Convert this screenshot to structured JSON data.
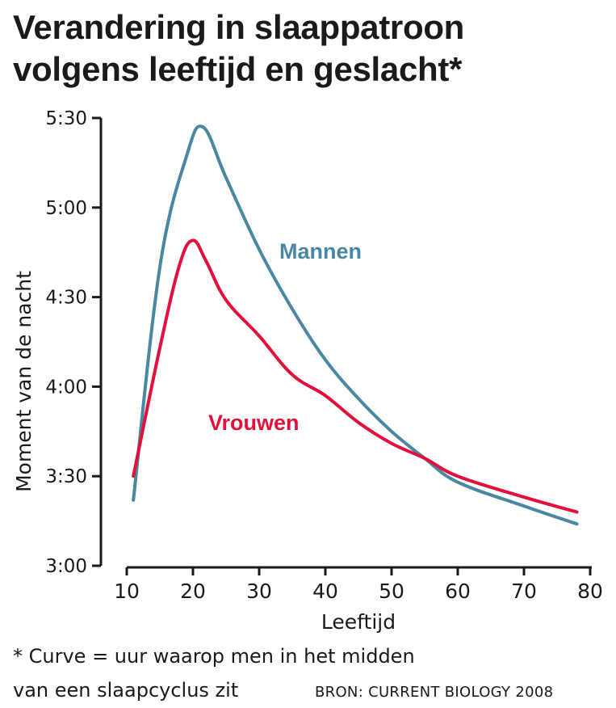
{
  "title_lines": [
    "Verandering in slaappatroon",
    "volgens leeftijd en geslacht*"
  ],
  "footnote_lines": [
    "* Curve = uur waarop men in het midden",
    "van een slaapcyclus zit"
  ],
  "source": "BRON: CURRENT BIOLOGY 2008",
  "chart_data": {
    "type": "line",
    "title": "Verandering in slaappatroon volgens leeftijd en geslacht*",
    "xlabel": "Leeftijd",
    "ylabel": "Moment van de nacht",
    "xlim": [
      10,
      80
    ],
    "ylim": [
      "3:00",
      "5:30"
    ],
    "x_ticks": [
      "10",
      "20",
      "30",
      "40",
      "50",
      "60",
      "70",
      "80"
    ],
    "y_ticks": [
      "3:00",
      "3:30",
      "4:00",
      "4:30",
      "5:00",
      "5:30"
    ],
    "grid": false,
    "series": [
      {
        "name": "Mannen",
        "color": "#4a87a3",
        "points": [
          [
            11,
            "3:22"
          ],
          [
            15,
            "4:40"
          ],
          [
            19,
            "5:17"
          ],
          [
            21.5,
            "5:27"
          ],
          [
            25,
            "5:10"
          ],
          [
            30,
            "4:46"
          ],
          [
            35,
            "4:26"
          ],
          [
            40,
            "4:09"
          ],
          [
            45,
            "3:56"
          ],
          [
            50,
            "3:45"
          ],
          [
            55,
            "3:36"
          ],
          [
            60,
            "3:28"
          ],
          [
            70,
            "3:20"
          ],
          [
            78,
            "3:14"
          ]
        ]
      },
      {
        "name": "Vrouwen",
        "color": "#e3103c",
        "points": [
          [
            11,
            "3:30"
          ],
          [
            15,
            "4:13"
          ],
          [
            18,
            "4:41"
          ],
          [
            20,
            "4:49"
          ],
          [
            22,
            "4:42"
          ],
          [
            25,
            "4:29"
          ],
          [
            30,
            "4:17"
          ],
          [
            35,
            "4:04"
          ],
          [
            40,
            "3:57"
          ],
          [
            45,
            "3:48"
          ],
          [
            50,
            "3:41"
          ],
          [
            55,
            "3:36"
          ],
          [
            60,
            "3:30"
          ],
          [
            70,
            "3:23"
          ],
          [
            78,
            "3:18"
          ]
        ]
      }
    ]
  }
}
